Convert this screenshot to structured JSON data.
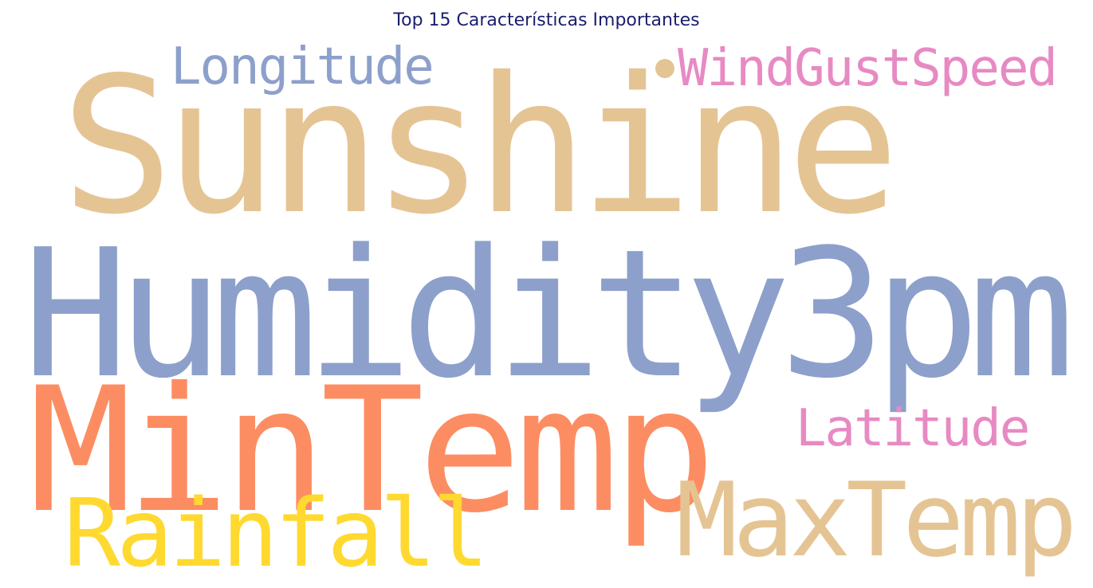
{
  "title": "Top 15 Características Importantes",
  "words": [
    {
      "text": "Sunshine",
      "color": "#e5c494"
    },
    {
      "text": "Humidity3pm",
      "color": "#8da0cb"
    },
    {
      "text": "MinTemp",
      "color": "#fc8d62"
    },
    {
      "text": "MaxTemp",
      "color": "#e5c494"
    },
    {
      "text": "Rainfall",
      "color": "#ffd92f"
    },
    {
      "text": "Longitude",
      "color": "#8da0cb"
    },
    {
      "text": "WindGustSpeed",
      "color": "#e78ac3"
    },
    {
      "text": "Latitude",
      "color": "#e78ac3"
    }
  ],
  "dot_color": "#e5c494"
}
